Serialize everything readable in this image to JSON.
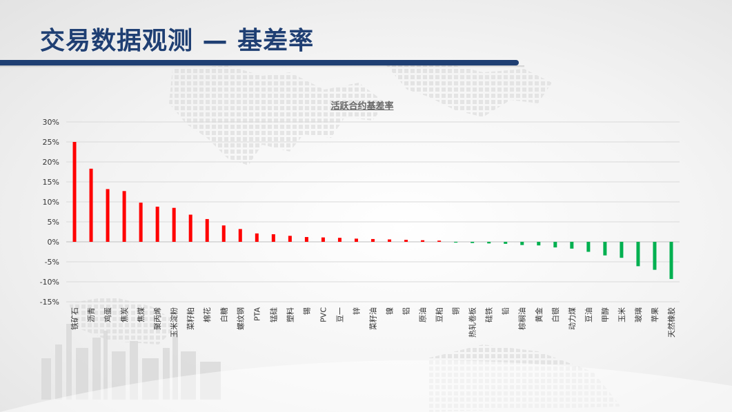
{
  "slide": {
    "title": "交易数据观测 — 基差率"
  },
  "colors": {
    "title": "#1f3f73",
    "positive": "#ff0000",
    "negative": "#00b050"
  },
  "chart_data": {
    "type": "bar",
    "title": "活跃合约基差率",
    "xlabel": "",
    "ylabel": "",
    "ylim": [
      -15,
      30
    ],
    "yticks": [
      30,
      25,
      20,
      15,
      10,
      5,
      0,
      -5,
      -10,
      -15
    ],
    "ytick_labels": [
      "30%",
      "25%",
      "20%",
      "15%",
      "10%",
      "5%",
      "0%",
      "-5%",
      "-10%",
      "-15%"
    ],
    "grid": true,
    "legend": "none",
    "categories": [
      "铁矿石",
      "沥青",
      "鸡蛋",
      "焦炭",
      "焦煤",
      "聚丙烯",
      "玉米淀粉",
      "菜籽粕",
      "棉花",
      "白糖",
      "螺纹钢",
      "PTA",
      "锰硅",
      "塑料",
      "锡",
      "PVC",
      "豆一",
      "锌",
      "菜籽油",
      "镍",
      "铝",
      "原油",
      "豆粕",
      "铜",
      "热轧卷板",
      "硅铁",
      "铅",
      "棕榈油",
      "黄金",
      "白银",
      "动力煤",
      "豆油",
      "甲醇",
      "玉米",
      "玻璃",
      "苹果",
      "天然橡胶"
    ],
    "values": [
      25.0,
      18.3,
      13.2,
      12.7,
      9.8,
      8.8,
      8.5,
      6.8,
      5.7,
      4.1,
      3.2,
      2.1,
      1.9,
      1.5,
      1.2,
      1.1,
      1.0,
      0.8,
      0.7,
      0.6,
      0.5,
      0.4,
      0.3,
      -0.2,
      -0.3,
      -0.4,
      -0.5,
      -0.8,
      -0.9,
      -1.4,
      -1.7,
      -2.5,
      -3.4,
      -4.0,
      -6.1,
      -7.0,
      -9.3
    ]
  }
}
